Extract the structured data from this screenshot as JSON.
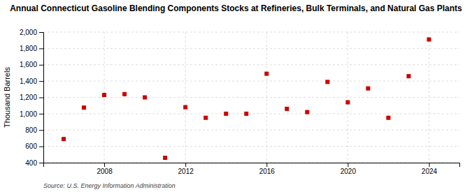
{
  "chart_data": {
    "type": "scatter",
    "title": "Annual Connecticut Gasoline Blending Components Stocks at Refineries, Bulk Terminals, and Natural Gas Plants",
    "ylabel": "Thousand Barrels",
    "annotations": [
      "Source: U.S. Energy Information Administration"
    ],
    "x": [
      2006,
      2007,
      2008,
      2009,
      2010,
      2011,
      2012,
      2013,
      2014,
      2015,
      2016,
      2017,
      2018,
      2019,
      2020,
      2021,
      2022,
      2023,
      2024
    ],
    "values": [
      690,
      1075,
      1230,
      1240,
      1200,
      460,
      1080,
      950,
      1000,
      1000,
      1490,
      1060,
      1020,
      1390,
      1140,
      1310,
      950,
      1460,
      1910
    ],
    "color": "#cc0000",
    "marker": "square",
    "xlim": [
      2005,
      2025.5
    ],
    "xticks": [
      2008,
      2012,
      2016,
      2020,
      2024
    ],
    "ylim": [
      400,
      2000
    ],
    "yticks": [
      400,
      600,
      800,
      {
        "value": 1000,
        "label": "1,000"
      },
      {
        "value": 1200,
        "label": "1,200"
      },
      {
        "value": 1400,
        "label": "1,400"
      },
      {
        "value": 1600,
        "label": "1,600"
      },
      {
        "value": 1800,
        "label": "1,800"
      },
      {
        "value": 2000,
        "label": "2,000"
      }
    ],
    "grid": true
  }
}
